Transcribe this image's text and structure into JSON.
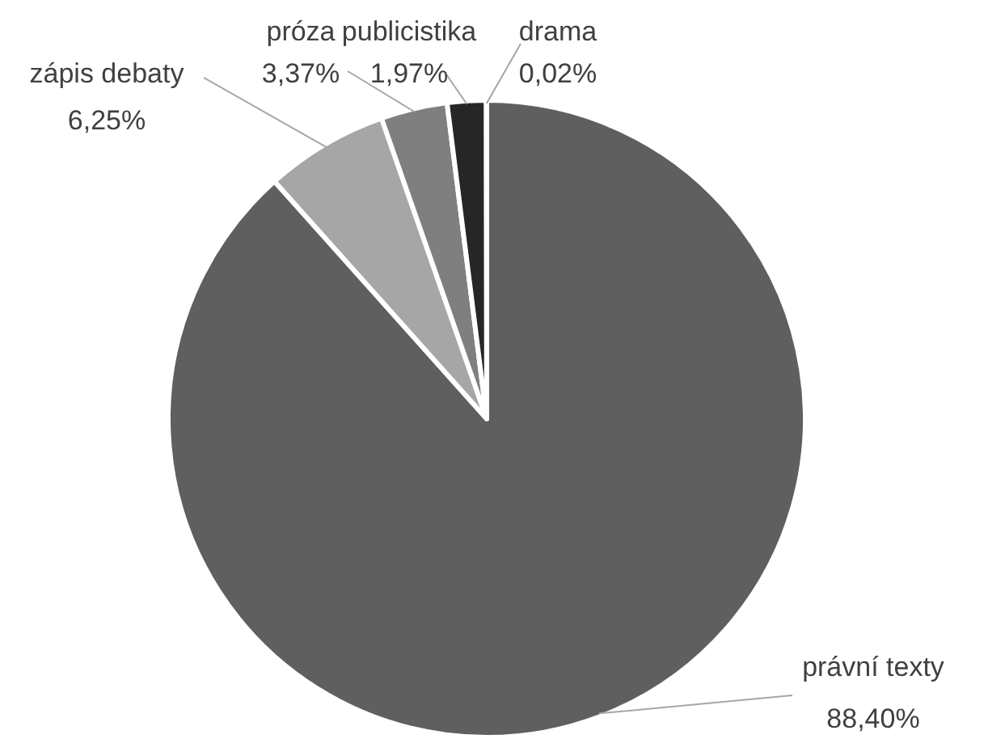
{
  "chart_data": {
    "type": "pie",
    "categories": [
      "právní texty",
      "zápis debaty",
      "próza",
      "publicistika",
      "drama"
    ],
    "values": [
      88.4,
      6.25,
      3.37,
      1.97,
      0.02
    ],
    "value_labels": [
      "88,40%",
      "6,25%",
      "3,37%",
      "1,97%",
      "0,02%"
    ],
    "colors": [
      "#5f5f5f",
      "#a6a6a6",
      "#7f7f7f",
      "#262626",
      "#d9d9d9"
    ]
  }
}
